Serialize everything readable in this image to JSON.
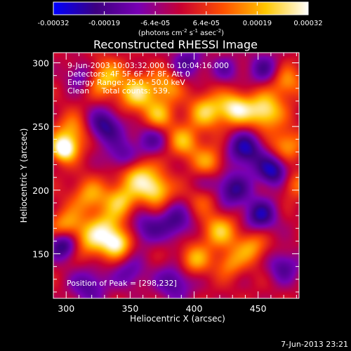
{
  "chart_data": {
    "type": "heatmap",
    "title": "Reconstructed RHESSI Image",
    "xlabel": "Heliocentric X (arcsec)",
    "ylabel": "Heliocentric Y (arcsec)",
    "xlim": [
      290,
      482
    ],
    "ylim": [
      115,
      308
    ],
    "xticks": [
      300,
      350,
      400,
      450
    ],
    "yticks": [
      150,
      200,
      250,
      300
    ],
    "colorbar": {
      "range": [
        -0.00032,
        0.00032
      ],
      "ticks": [
        "-0.00032",
        "-0.00019",
        "-6.4e-05",
        "6.4e-05",
        "0.00019",
        "0.00032"
      ],
      "unit_parts": [
        "(photons cm",
        "-2",
        " s",
        "-1",
        " asec",
        "-2",
        ")"
      ],
      "stops": [
        "#0000ff",
        "#3c0080",
        "#7800b4",
        "#c80032",
        "#ff5000",
        "#ffc800",
        "#ffffff"
      ]
    },
    "annotations": [
      "9-Jun-2003 10:03:32.000 to 10:04:16.000",
      "Detectors: 4F 5F 6F 7F 8F, Att 0",
      "Energy Range: 25.0 - 50.0 keV",
      "Clean     Total counts: 539."
    ],
    "peak_label": "Position of Peak = [298,232]",
    "peak": [
      298,
      232
    ],
    "sources": [
      {
        "x": 298,
        "y": 232,
        "amp": 1.0,
        "w": 7
      },
      {
        "x": 305,
        "y": 245,
        "amp": 0.6,
        "w": 10
      },
      {
        "x": 330,
        "y": 288,
        "amp": 0.7,
        "w": 10
      },
      {
        "x": 355,
        "y": 276,
        "amp": 0.75,
        "w": 10
      },
      {
        "x": 378,
        "y": 282,
        "amp": 0.55,
        "w": 9
      },
      {
        "x": 372,
        "y": 258,
        "amp": 0.6,
        "w": 9
      },
      {
        "x": 410,
        "y": 262,
        "amp": 0.7,
        "w": 10
      },
      {
        "x": 432,
        "y": 264,
        "amp": 0.85,
        "w": 9
      },
      {
        "x": 455,
        "y": 262,
        "amp": 0.9,
        "w": 10
      },
      {
        "x": 472,
        "y": 285,
        "amp": 0.55,
        "w": 9
      },
      {
        "x": 392,
        "y": 238,
        "amp": 0.6,
        "w": 9
      },
      {
        "x": 412,
        "y": 222,
        "amp": 0.55,
        "w": 9
      },
      {
        "x": 355,
        "y": 213,
        "amp": 0.75,
        "w": 10
      },
      {
        "x": 370,
        "y": 200,
        "amp": 0.8,
        "w": 9
      },
      {
        "x": 343,
        "y": 192,
        "amp": 0.65,
        "w": 9
      },
      {
        "x": 318,
        "y": 195,
        "amp": 0.55,
        "w": 10
      },
      {
        "x": 300,
        "y": 172,
        "amp": 0.6,
        "w": 9
      },
      {
        "x": 320,
        "y": 160,
        "amp": 0.65,
        "w": 10
      },
      {
        "x": 340,
        "y": 158,
        "amp": 0.85,
        "w": 8
      },
      {
        "x": 332,
        "y": 172,
        "amp": 0.55,
        "w": 9
      },
      {
        "x": 420,
        "y": 168,
        "amp": 0.65,
        "w": 10
      },
      {
        "x": 445,
        "y": 155,
        "amp": 0.55,
        "w": 9
      },
      {
        "x": 400,
        "y": 145,
        "amp": 0.6,
        "w": 9
      },
      {
        "x": 428,
        "y": 142,
        "amp": 0.45,
        "w": 8
      },
      {
        "x": 472,
        "y": 235,
        "amp": 0.6,
        "w": 9
      },
      {
        "x": 478,
        "y": 205,
        "amp": 0.45,
        "w": 8
      },
      {
        "x": 408,
        "y": 195,
        "amp": 0.4,
        "w": 9
      },
      {
        "x": 366,
        "y": 240,
        "amp": -0.55,
        "w": 9
      },
      {
        "x": 330,
        "y": 250,
        "amp": -0.75,
        "w": 10
      },
      {
        "x": 345,
        "y": 225,
        "amp": -0.6,
        "w": 9
      },
      {
        "x": 440,
        "y": 232,
        "amp": -0.8,
        "w": 10
      },
      {
        "x": 462,
        "y": 215,
        "amp": -0.85,
        "w": 9
      },
      {
        "x": 430,
        "y": 200,
        "amp": -0.7,
        "w": 10
      },
      {
        "x": 385,
        "y": 175,
        "amp": -0.6,
        "w": 10
      },
      {
        "x": 362,
        "y": 170,
        "amp": -0.5,
        "w": 9
      },
      {
        "x": 298,
        "y": 157,
        "amp": -0.85,
        "w": 8
      },
      {
        "x": 452,
        "y": 180,
        "amp": -0.75,
        "w": 9
      },
      {
        "x": 385,
        "y": 128,
        "amp": -0.6,
        "w": 10
      },
      {
        "x": 318,
        "y": 125,
        "amp": -0.55,
        "w": 10
      },
      {
        "x": 470,
        "y": 140,
        "amp": -0.55,
        "w": 9
      },
      {
        "x": 455,
        "y": 295,
        "amp": -0.55,
        "w": 9
      },
      {
        "x": 312,
        "y": 290,
        "amp": -0.5,
        "w": 8
      },
      {
        "x": 395,
        "y": 300,
        "amp": -0.55,
        "w": 9
      },
      {
        "x": 425,
        "y": 295,
        "amp": -0.4,
        "w": 8
      },
      {
        "x": 350,
        "y": 135,
        "amp": -0.45,
        "w": 9
      },
      {
        "x": 410,
        "y": 205,
        "amp": -0.35,
        "w": 8
      }
    ]
  },
  "footer": {
    "date_stamp": "7-Jun-2013 23:21"
  }
}
